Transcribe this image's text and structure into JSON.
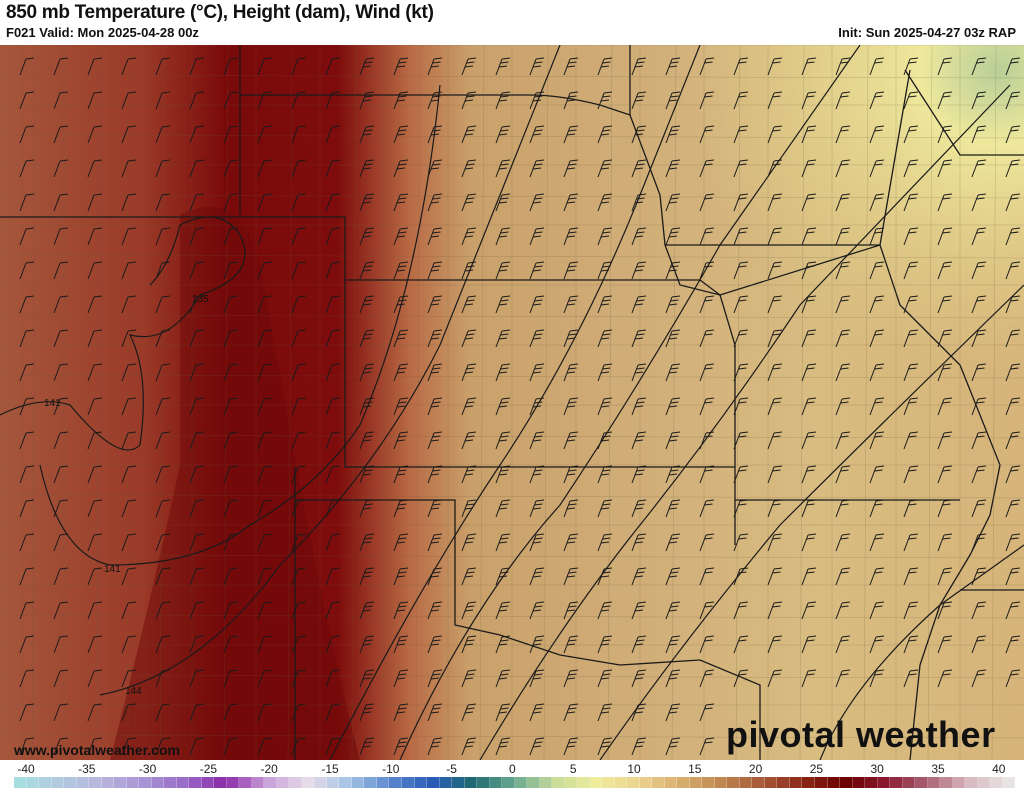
{
  "header": {
    "title": "850 mb Temperature (°C), Height (dam), Wind (kt)",
    "valid": "F021 Valid: Mon 2025-04-28 00z",
    "init": "Init: Sun 2025-04-27 03z RAP"
  },
  "map": {
    "contour_labels": [
      "135",
      "141",
      "141",
      "144"
    ],
    "colors": {
      "hot": "#7a0a0a",
      "warm": "#a4482e",
      "mild": "#c9a46a",
      "cool": "#ece69a",
      "cold": "#b9cf98",
      "lines": "#1a1a1a"
    }
  },
  "footer": {
    "website": "www.pivotalweather.com",
    "brand": "pivotal weather",
    "brand_icon": "sun-gear-icon"
  },
  "colorbar": {
    "ticks": [
      "-40",
      "-35",
      "-30",
      "-25",
      "-20",
      "-15",
      "-10",
      "-5",
      "0",
      "5",
      "10",
      "15",
      "20",
      "25",
      "30",
      "35",
      "40"
    ],
    "range": [
      -40,
      40
    ],
    "stops": [
      "#a8dde0",
      "#b2c8e0",
      "#b8b4dc",
      "#a894d4",
      "#9a6cc8",
      "#8a2aa8",
      "#c8a0d8",
      "#e6dce8",
      "#a4c4e4",
      "#5a86cc",
      "#2a5cb8",
      "#1e6a70",
      "#6aa890",
      "#c8dc98",
      "#f0ec9c",
      "#ecd490",
      "#d8b070",
      "#c08850",
      "#a85a38",
      "#8c2818",
      "#6a0000",
      "#8a1830",
      "#a86070",
      "#d8b8c0",
      "#e8e4e4"
    ]
  }
}
